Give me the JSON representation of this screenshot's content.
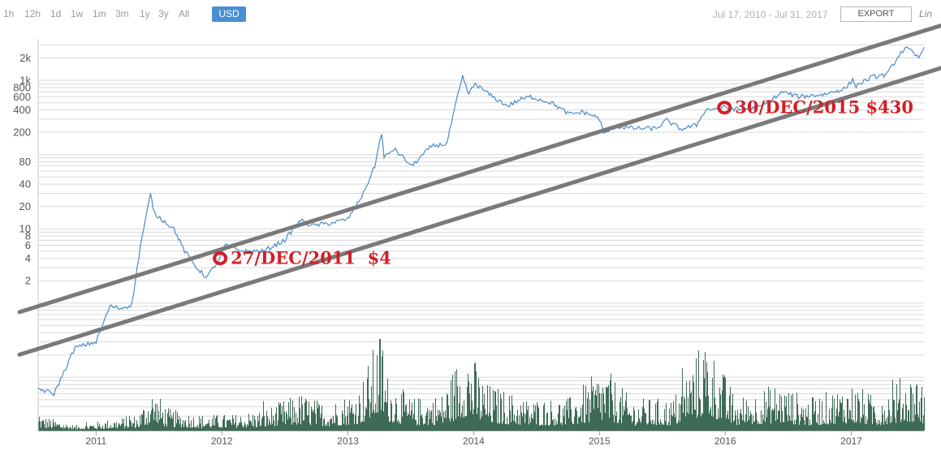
{
  "toolbar": {
    "ranges": [
      "1h",
      "12h",
      "1d",
      "1w",
      "1m",
      "3m",
      "1y",
      "3y",
      "All"
    ],
    "currency": "USD",
    "date_range": "Jul 17, 2010 - Jul 31, 2017",
    "export_label": "EXPORT",
    "scale_label": "Lin"
  },
  "colors": {
    "price_line": "#4a8bc7",
    "volume": "#3d6b55",
    "trend_line": "#7a7a7a",
    "annotation": "#d11f26",
    "accent": "#4a8fd4"
  },
  "chart_data": {
    "type": "line",
    "y_scale": "log",
    "ylim": [
      0.06,
      3500
    ],
    "xlim": [
      "2010-07-17",
      "2017-07-31"
    ],
    "y_ticks": [
      "2",
      "4",
      "6",
      "8",
      "10",
      "20",
      "40",
      "80",
      "200",
      "400",
      "600",
      "800",
      "1k",
      "2k"
    ],
    "x_ticks": [
      "2011",
      "2012",
      "2013",
      "2014",
      "2015",
      "2016",
      "2017"
    ],
    "series": [
      {
        "type": "line",
        "x": [
          "2010-07-17",
          "2010-09-01",
          "2010-11-01",
          "2011-01-01",
          "2011-02-10",
          "2011-03-15",
          "2011-04-15",
          "2011-05-10",
          "2011-06-08",
          "2011-06-20",
          "2011-07-15",
          "2011-08-15",
          "2011-09-15",
          "2011-10-20",
          "2011-11-18",
          "2011-12-27",
          "2012-01-10",
          "2012-03-01",
          "2012-05-01",
          "2012-07-01",
          "2012-08-16",
          "2012-09-20",
          "2012-11-15",
          "2013-01-01",
          "2013-02-15",
          "2013-03-20",
          "2013-04-09",
          "2013-04-16",
          "2013-05-15",
          "2013-07-05",
          "2013-09-01",
          "2013-10-15",
          "2013-11-15",
          "2013-11-30",
          "2013-12-18",
          "2014-01-05",
          "2014-02-25",
          "2014-04-10",
          "2014-05-15",
          "2014-06-15",
          "2014-08-15",
          "2014-10-05",
          "2014-11-15",
          "2014-12-31",
          "2015-01-14",
          "2015-02-15",
          "2015-04-15",
          "2015-06-15",
          "2015-07-15",
          "2015-08-25",
          "2015-10-10",
          "2015-11-04",
          "2015-12-30",
          "2016-02-15",
          "2016-04-15",
          "2016-06-16",
          "2016-08-01",
          "2016-10-15",
          "2016-12-15",
          "2017-01-05",
          "2017-01-15",
          "2017-03-01",
          "2017-04-15",
          "2017-05-25",
          "2017-06-12",
          "2017-07-16",
          "2017-07-31"
        ],
        "values": [
          0.07,
          0.06,
          0.25,
          0.3,
          0.9,
          0.85,
          0.95,
          6,
          29,
          16,
          13,
          10,
          5,
          3,
          2.2,
          4,
          6,
          5,
          5,
          7,
          13,
          11,
          12,
          13.5,
          30,
          70,
          200,
          90,
          120,
          70,
          130,
          140,
          600,
          1100,
          650,
          900,
          600,
          450,
          550,
          600,
          500,
          350,
          375,
          310,
          190,
          240,
          225,
          225,
          290,
          220,
          250,
          400,
          430,
          400,
          440,
          700,
          600,
          650,
          780,
          1000,
          850,
          1100,
          1200,
          2400,
          2700,
          2000,
          2800
        ]
      }
    ],
    "volume_series": {
      "x": [
        "2010-07-17",
        "2010-11-01",
        "2011-02-01",
        "2011-05-01",
        "2011-06-10",
        "2011-08-01",
        "2011-11-01",
        "2012-02-01",
        "2012-05-01",
        "2012-08-15",
        "2012-11-01",
        "2013-02-01",
        "2013-04-10",
        "2013-04-20",
        "2013-07-01",
        "2013-10-01",
        "2013-11-25",
        "2013-12-10",
        "2014-02-01",
        "2014-06-01",
        "2014-10-01",
        "2015-01-14",
        "2015-04-01",
        "2015-08-01",
        "2015-11-04",
        "2016-02-01",
        "2016-06-01",
        "2016-09-01",
        "2017-01-05",
        "2017-03-15",
        "2017-05-25",
        "2017-07-16",
        "2017-07-31"
      ],
      "values": [
        0.15,
        0.05,
        0.1,
        0.15,
        0.4,
        0.2,
        0.15,
        0.15,
        0.2,
        0.35,
        0.25,
        0.4,
        1.0,
        0.55,
        0.3,
        0.35,
        0.75,
        0.85,
        0.45,
        0.3,
        0.3,
        0.6,
        0.3,
        0.3,
        0.9,
        0.3,
        0.45,
        0.3,
        0.45,
        0.3,
        0.5,
        0.55,
        0.35
      ]
    },
    "trend_lines": [
      {
        "from": {
          "x": "2010-07-17",
          "y": 0.75
        },
        "to": {
          "x": "2017-07-31",
          "y": 5600
        }
      },
      {
        "from": {
          "x": "2010-07-17",
          "y": 0.2
        },
        "to": {
          "x": "2017-07-31",
          "y": 1500
        }
      }
    ],
    "annotations": [
      {
        "label": "27/DEC/2011  $4",
        "x": "2011-12-27",
        "y": 4
      },
      {
        "label": "30/DEC/2015 $430",
        "x": "2015-12-30",
        "y": 430
      }
    ]
  }
}
